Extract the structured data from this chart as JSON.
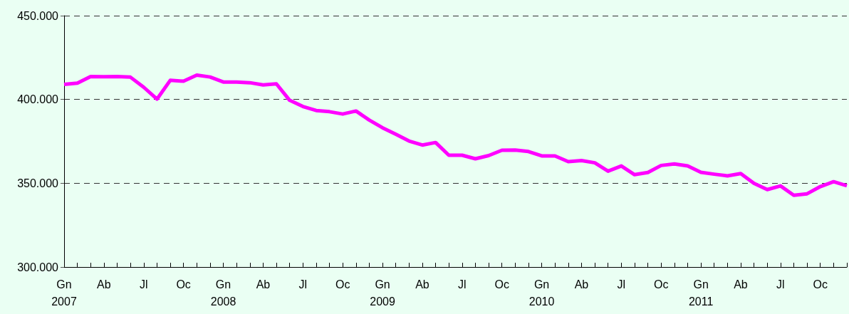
{
  "chart_data": {
    "type": "line",
    "categories": [
      "Gn\n2007",
      null,
      null,
      "Ab",
      null,
      null,
      "Jl",
      null,
      null,
      "Oc",
      null,
      null,
      "Gn\n2008",
      null,
      null,
      "Ab",
      null,
      null,
      "Jl",
      null,
      null,
      "Oc",
      null,
      null,
      "Gn\n2009",
      null,
      null,
      "Ab",
      null,
      null,
      "Jl",
      null,
      null,
      "Oc",
      null,
      null,
      "Gn\n2010",
      null,
      null,
      "Ab",
      null,
      null,
      "Jl",
      null,
      null,
      "Oc",
      null,
      null,
      "Gn\n2011",
      null,
      null,
      "Ab",
      null,
      null,
      "Jl",
      null,
      null,
      "Oc",
      null,
      null
    ],
    "series": [
      {
        "color": "#ff00ff",
        "values": [
          409000,
          409700,
          413700,
          413600,
          413700,
          413300,
          407300,
          400200,
          411400,
          410900,
          414500,
          413400,
          410400,
          410400,
          410000,
          408700,
          409300,
          399500,
          395800,
          393400,
          392700,
          391300,
          393100,
          387700,
          383100,
          379200,
          375200,
          372800,
          374300,
          366700,
          366700,
          364600,
          366500,
          369700,
          369800,
          368900,
          366300,
          366300,
          362900,
          363500,
          362200,
          357200,
          360300,
          355100,
          356400,
          360600,
          361500,
          360300,
          356500,
          355400,
          354400,
          355800,
          349900,
          346200,
          348400,
          342800,
          343700,
          348000,
          350900,
          348500
        ]
      }
    ],
    "ylim": [
      300000,
      450000
    ],
    "yticks": [
      {
        "value": 300000,
        "label": "300.000"
      },
      {
        "value": 350000,
        "label": "350.000"
      },
      {
        "value": 400000,
        "label": "400.000"
      },
      {
        "value": 450000,
        "label": "450.000"
      }
    ],
    "grid": "y",
    "marker": "none",
    "line_style": "solid"
  }
}
